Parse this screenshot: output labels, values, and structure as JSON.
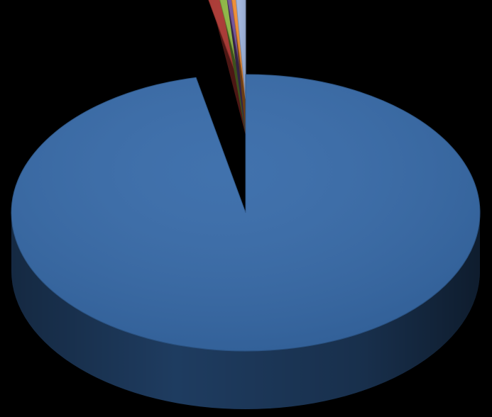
{
  "chart_data": {
    "type": "pie",
    "style": "3d-exploded",
    "values": [
      96.6,
      1.0,
      0.7,
      0.4,
      0.4,
      0.9
    ],
    "colors": [
      "#3569A8",
      "#A8322D",
      "#8AB43F",
      "#6E4E97",
      "#EE8A2E",
      "#9FB4DD"
    ],
    "exploded": [
      false,
      true,
      true,
      true,
      true,
      true
    ],
    "background": "#000000"
  }
}
